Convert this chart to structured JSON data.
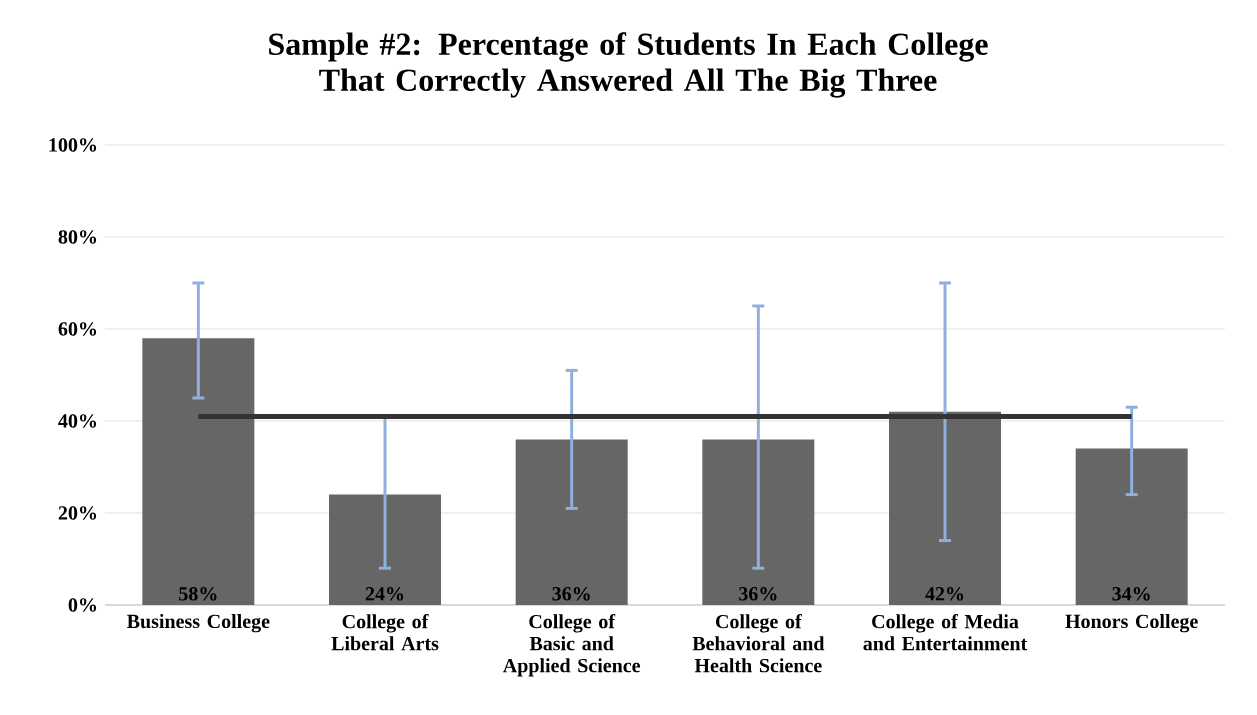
{
  "chart_data": {
    "type": "bar",
    "title": "Sample #2: Percentage of Students In Each College That Correctly Answered All The Big Three",
    "categories": [
      "Business College",
      "College of Liberal Arts",
      "College of Basic and Applied Science",
      "College of Behavioral and Health Science",
      "College of Media and Entertainment",
      "Honors College"
    ],
    "values": [
      58,
      24,
      36,
      36,
      42,
      34
    ],
    "errors": [
      [
        45,
        70
      ],
      [
        8,
        41
      ],
      [
        21,
        51
      ],
      [
        8,
        65
      ],
      [
        14,
        70
      ],
      [
        24,
        43
      ]
    ],
    "color": "#666666",
    "value_labels": [
      "58%",
      "24%",
      "36%",
      "36%",
      "42%",
      "34%"
    ],
    "ylim": [
      0,
      100
    ],
    "yticks": [
      {
        "value": 0,
        "label": "0%"
      },
      {
        "value": 20,
        "label": "20%"
      },
      {
        "value": 40,
        "label": "40%"
      },
      {
        "value": 60,
        "label": "60%"
      },
      {
        "value": 80,
        "label": "80%"
      },
      {
        "value": 100,
        "label": "100%"
      }
    ],
    "grid": "y",
    "ref_lines": [
      {
        "axis": "y",
        "value": 41,
        "color": "#333333"
      }
    ]
  }
}
